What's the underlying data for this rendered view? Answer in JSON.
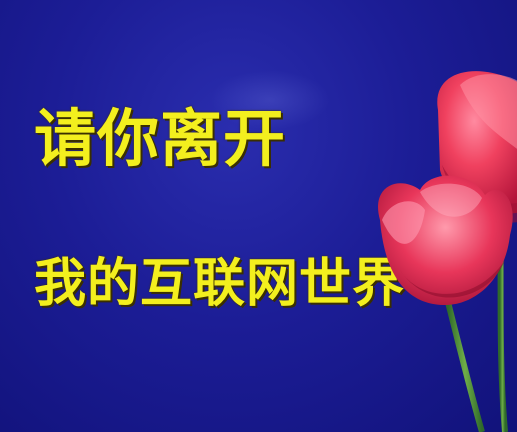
{
  "image": {
    "line1": "请你离开",
    "line2": "我的互联网世界",
    "background_color": "#1c1d96",
    "text_color": "#f3ef1e",
    "flower_color": "#e8365a",
    "decoration": "red-tulips"
  }
}
